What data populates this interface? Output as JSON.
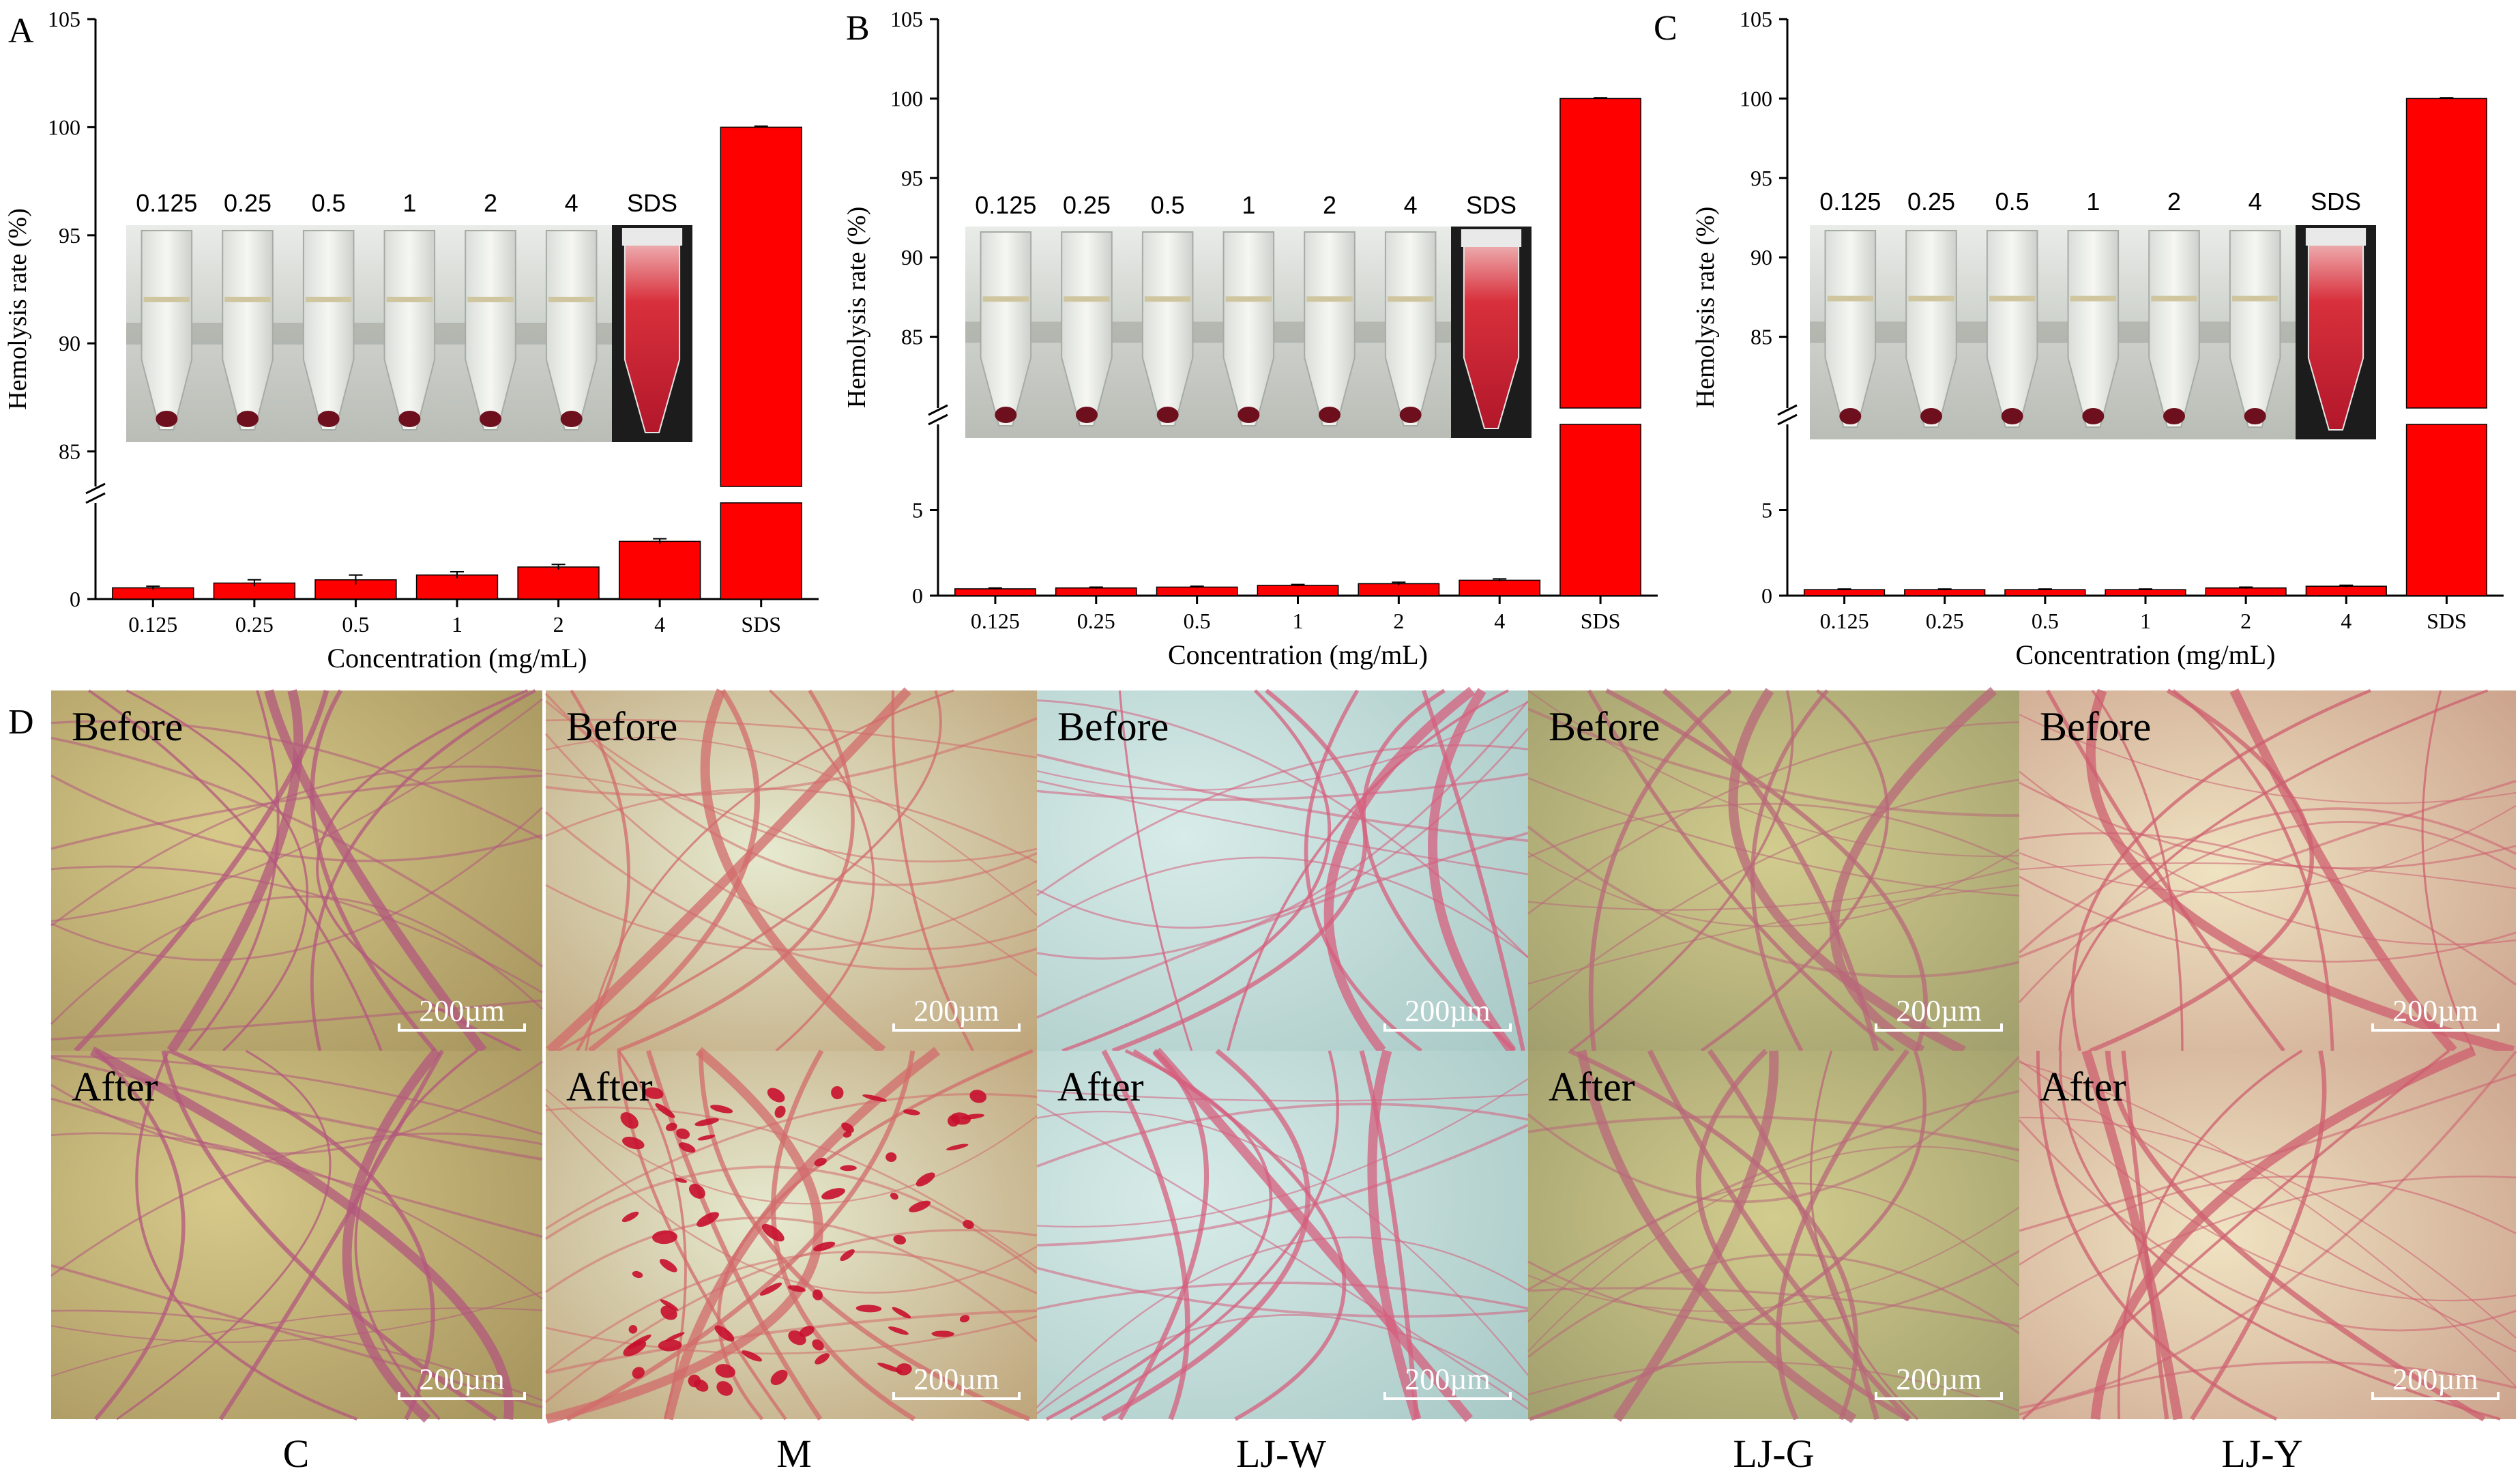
{
  "figure": {
    "panel_letters": [
      "A",
      "B",
      "C",
      "D"
    ],
    "tube_labels": [
      "0.125",
      "0.25",
      "0.5",
      "1",
      "2",
      "4",
      "SDS"
    ],
    "before_label": "Before",
    "after_label": "After",
    "scale_bar": "200µm",
    "groups": [
      "C",
      "M",
      "LJ-W",
      "LJ-G",
      "LJ-Y"
    ],
    "colors": {
      "bar": "#ff0000",
      "axis": "#000000"
    }
  },
  "chart_data": [
    {
      "type": "bar",
      "panel": "A",
      "categories": [
        "0.125",
        "0.25",
        "0.5",
        "1",
        "2",
        "4",
        "SDS"
      ],
      "values": [
        0.35,
        0.5,
        0.6,
        0.75,
        1.0,
        1.8,
        100
      ],
      "errors": [
        0.05,
        0.1,
        0.15,
        0.1,
        0.08,
        0.08,
        0.05
      ],
      "xlabel": "Concentration (mg/mL)",
      "ylabel": "Hemolysis rate (%)",
      "axis_break": [
        3,
        83
      ],
      "yticks_low": [
        0
      ],
      "yticks_high": [
        85,
        90,
        95,
        100,
        105
      ],
      "ylim": [
        0,
        105
      ]
    },
    {
      "type": "bar",
      "panel": "B",
      "categories": [
        "0.125",
        "0.25",
        "0.5",
        "1",
        "2",
        "4",
        "SDS"
      ],
      "values": [
        0.4,
        0.45,
        0.5,
        0.6,
        0.7,
        0.9,
        100
      ],
      "errors": [
        0.05,
        0.05,
        0.05,
        0.05,
        0.08,
        0.08,
        0.05
      ],
      "xlabel": "Concentration (mg/mL)",
      "ylabel": "Hemolysis rate (%)",
      "axis_break": [
        10,
        80
      ],
      "yticks_low": [
        0,
        5
      ],
      "yticks_high": [
        85,
        90,
        95,
        100,
        105
      ],
      "ylim": [
        0,
        105
      ]
    },
    {
      "type": "bar",
      "panel": "C",
      "categories": [
        "0.125",
        "0.25",
        "0.5",
        "1",
        "2",
        "4",
        "SDS"
      ],
      "values": [
        0.35,
        0.35,
        0.35,
        0.35,
        0.45,
        0.55,
        100
      ],
      "errors": [
        0.04,
        0.04,
        0.04,
        0.04,
        0.05,
        0.06,
        0.05
      ],
      "xlabel": "Concentration (mg/mL)",
      "ylabel": "Hemolysis rate (%)",
      "axis_break": [
        10,
        80
      ],
      "yticks_low": [
        0,
        5
      ],
      "yticks_high": [
        85,
        90,
        95,
        100,
        105
      ],
      "ylim": [
        0,
        105
      ]
    }
  ]
}
